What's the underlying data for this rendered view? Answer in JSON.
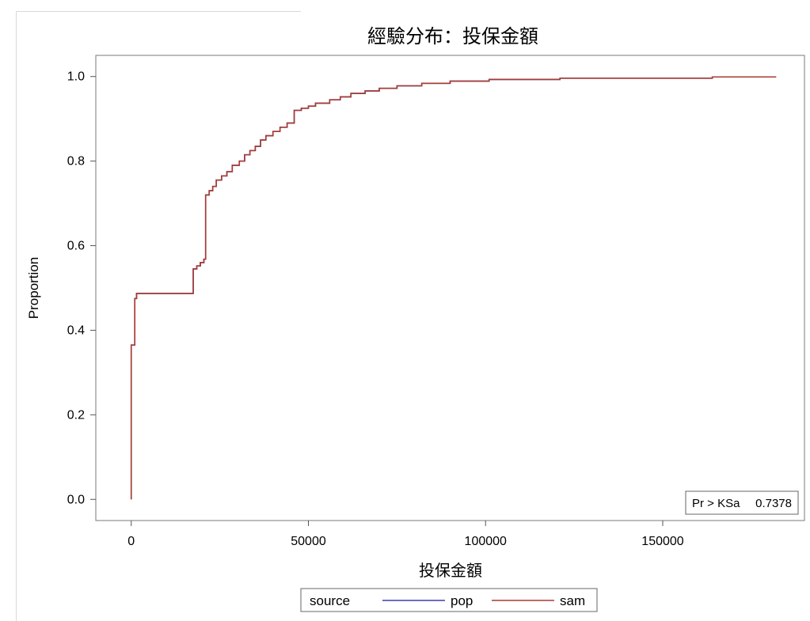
{
  "chart_data": {
    "type": "line",
    "title": "經驗分布：投保金額",
    "xlabel": "投保金額",
    "ylabel": "Proportion",
    "xlim": [
      -10000,
      190000
    ],
    "ylim": [
      -0.05,
      1.05
    ],
    "x_ticks": [
      0,
      50000,
      100000,
      150000
    ],
    "x_tick_labels": [
      "0",
      "50000",
      "100000",
      "150000"
    ],
    "y_ticks": [
      0.0,
      0.2,
      0.4,
      0.6,
      0.8,
      1.0
    ],
    "y_tick_labels": [
      "0.0",
      "0.2",
      "0.4",
      "0.6",
      "0.8",
      "1.0"
    ],
    "grid": false,
    "step": true,
    "legend": {
      "title": "source",
      "placement": "bottom-center",
      "items": [
        {
          "name": "pop",
          "color": "#3b3bb0"
        },
        {
          "name": "sam",
          "color": "#a83b2f"
        }
      ]
    },
    "inset": {
      "label": "Pr > KSa",
      "value": "0.7378"
    },
    "series": [
      {
        "name": "pop",
        "color": "#3b3bb0",
        "points": [
          [
            0,
            0
          ],
          [
            0,
            0.365
          ],
          [
            1000,
            0.365
          ],
          [
            1000,
            0.475
          ],
          [
            1500,
            0.475
          ],
          [
            1500,
            0.487
          ],
          [
            17500,
            0.487
          ],
          [
            17500,
            0.545
          ],
          [
            18500,
            0.545
          ],
          [
            18500,
            0.552
          ],
          [
            19500,
            0.552
          ],
          [
            19500,
            0.56
          ],
          [
            20500,
            0.56
          ],
          [
            20500,
            0.568
          ],
          [
            21000,
            0.568
          ],
          [
            21000,
            0.72
          ],
          [
            22000,
            0.72
          ],
          [
            22000,
            0.73
          ],
          [
            23000,
            0.73
          ],
          [
            23000,
            0.74
          ],
          [
            24000,
            0.74
          ],
          [
            24000,
            0.755
          ],
          [
            25500,
            0.755
          ],
          [
            25500,
            0.765
          ],
          [
            27000,
            0.765
          ],
          [
            27000,
            0.775
          ],
          [
            28500,
            0.775
          ],
          [
            28500,
            0.79
          ],
          [
            30500,
            0.79
          ],
          [
            30500,
            0.8
          ],
          [
            32000,
            0.8
          ],
          [
            32000,
            0.815
          ],
          [
            33500,
            0.815
          ],
          [
            33500,
            0.825
          ],
          [
            35000,
            0.825
          ],
          [
            35000,
            0.835
          ],
          [
            36500,
            0.835
          ],
          [
            36500,
            0.85
          ],
          [
            38000,
            0.85
          ],
          [
            38000,
            0.86
          ],
          [
            40000,
            0.86
          ],
          [
            40000,
            0.87
          ],
          [
            42000,
            0.87
          ],
          [
            42000,
            0.88
          ],
          [
            44000,
            0.88
          ],
          [
            44000,
            0.89
          ],
          [
            46000,
            0.89
          ],
          [
            46000,
            0.92
          ],
          [
            48000,
            0.92
          ],
          [
            48000,
            0.925
          ],
          [
            50000,
            0.925
          ],
          [
            50000,
            0.93
          ],
          [
            52000,
            0.93
          ],
          [
            52000,
            0.937
          ],
          [
            56000,
            0.937
          ],
          [
            56000,
            0.945
          ],
          [
            59000,
            0.945
          ],
          [
            59000,
            0.952
          ],
          [
            62000,
            0.952
          ],
          [
            62000,
            0.96
          ],
          [
            66000,
            0.96
          ],
          [
            66000,
            0.966
          ],
          [
            70000,
            0.966
          ],
          [
            70000,
            0.972
          ],
          [
            75000,
            0.972
          ],
          [
            75000,
            0.978
          ],
          [
            82000,
            0.978
          ],
          [
            82000,
            0.984
          ],
          [
            90000,
            0.984
          ],
          [
            90000,
            0.989
          ],
          [
            101000,
            0.989
          ],
          [
            101000,
            0.993
          ],
          [
            121000,
            0.993
          ],
          [
            121000,
            0.996
          ],
          [
            164000,
            0.996
          ],
          [
            164000,
            0.999
          ],
          [
            182000,
            0.999
          ]
        ]
      },
      {
        "name": "sam",
        "color": "#a83b2f",
        "points": [
          [
            0,
            0
          ],
          [
            0,
            0.365
          ],
          [
            1000,
            0.365
          ],
          [
            1000,
            0.475
          ],
          [
            1500,
            0.475
          ],
          [
            1500,
            0.487
          ],
          [
            17500,
            0.487
          ],
          [
            17500,
            0.545
          ],
          [
            18500,
            0.545
          ],
          [
            18500,
            0.552
          ],
          [
            19500,
            0.552
          ],
          [
            19500,
            0.56
          ],
          [
            20500,
            0.56
          ],
          [
            20500,
            0.568
          ],
          [
            21000,
            0.568
          ],
          [
            21000,
            0.72
          ],
          [
            22000,
            0.72
          ],
          [
            22000,
            0.73
          ],
          [
            23000,
            0.73
          ],
          [
            23000,
            0.74
          ],
          [
            24000,
            0.74
          ],
          [
            24000,
            0.755
          ],
          [
            25500,
            0.755
          ],
          [
            25500,
            0.765
          ],
          [
            27000,
            0.765
          ],
          [
            27000,
            0.775
          ],
          [
            28500,
            0.775
          ],
          [
            28500,
            0.79
          ],
          [
            30500,
            0.79
          ],
          [
            30500,
            0.8
          ],
          [
            32000,
            0.8
          ],
          [
            32000,
            0.815
          ],
          [
            33500,
            0.815
          ],
          [
            33500,
            0.825
          ],
          [
            35000,
            0.825
          ],
          [
            35000,
            0.835
          ],
          [
            36500,
            0.835
          ],
          [
            36500,
            0.85
          ],
          [
            38000,
            0.85
          ],
          [
            38000,
            0.86
          ],
          [
            40000,
            0.86
          ],
          [
            40000,
            0.87
          ],
          [
            42000,
            0.87
          ],
          [
            42000,
            0.88
          ],
          [
            44000,
            0.88
          ],
          [
            44000,
            0.89
          ],
          [
            46000,
            0.89
          ],
          [
            46000,
            0.92
          ],
          [
            48000,
            0.92
          ],
          [
            48000,
            0.925
          ],
          [
            50000,
            0.925
          ],
          [
            50000,
            0.93
          ],
          [
            52000,
            0.93
          ],
          [
            52000,
            0.937
          ],
          [
            56000,
            0.937
          ],
          [
            56000,
            0.945
          ],
          [
            59000,
            0.945
          ],
          [
            59000,
            0.952
          ],
          [
            62000,
            0.952
          ],
          [
            62000,
            0.96
          ],
          [
            66000,
            0.96
          ],
          [
            66000,
            0.966
          ],
          [
            70000,
            0.966
          ],
          [
            70000,
            0.972
          ],
          [
            75000,
            0.972
          ],
          [
            75000,
            0.978
          ],
          [
            82000,
            0.978
          ],
          [
            82000,
            0.984
          ],
          [
            90000,
            0.984
          ],
          [
            90000,
            0.989
          ],
          [
            101000,
            0.989
          ],
          [
            101000,
            0.993
          ],
          [
            121000,
            0.993
          ],
          [
            121000,
            0.996
          ],
          [
            164000,
            0.996
          ],
          [
            164000,
            0.999
          ],
          [
            182000,
            0.999
          ]
        ]
      }
    ]
  }
}
